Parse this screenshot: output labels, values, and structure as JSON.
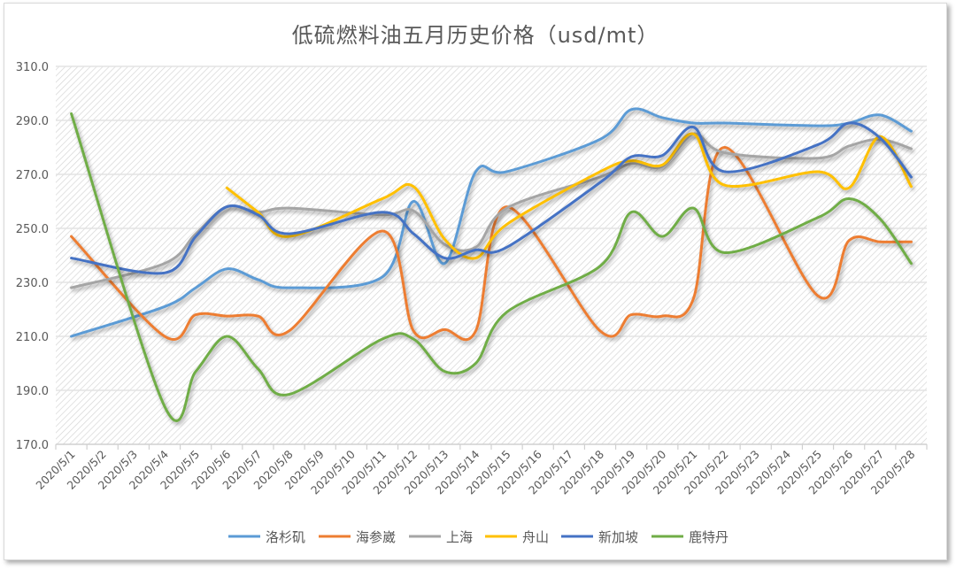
{
  "chart_data": {
    "type": "line",
    "title": "低硫燃料油五月历史价格（usd/mt）",
    "xlabel": "",
    "ylabel": "",
    "ylim": [
      170,
      310
    ],
    "yticks": [
      "170.0",
      "190.0",
      "210.0",
      "230.0",
      "250.0",
      "270.0",
      "290.0",
      "310.0"
    ],
    "grid": true,
    "smooth": true,
    "legend_position": "bottom",
    "categories": [
      "2020/5/1",
      "2020/5/2",
      "2020/5/3",
      "2020/5/4",
      "2020/5/5",
      "2020/5/6",
      "2020/5/7",
      "2020/5/8",
      "2020/5/9",
      "2020/5/10",
      "2020/5/11",
      "2020/5/12",
      "2020/5/13",
      "2020/5/14",
      "2020/5/15",
      "2020/5/16",
      "2020/5/17",
      "2020/5/18",
      "2020/5/19",
      "2020/5/20",
      "2020/5/21",
      "2020/5/22",
      "2020/5/23",
      "2020/5/24",
      "2020/5/25",
      "2020/5/26",
      "2020/5/27",
      "2020/5/28"
    ],
    "x": [
      "2020/5/1",
      "2020/5/4",
      "2020/5/5",
      "2020/5/6",
      "2020/5/7",
      "2020/5/8",
      "2020/5/11",
      "2020/5/12",
      "2020/5/13",
      "2020/5/14",
      "2020/5/15",
      "2020/5/18",
      "2020/5/19",
      "2020/5/20",
      "2020/5/21",
      "2020/5/22",
      "2020/5/25",
      "2020/5/26",
      "2020/5/27",
      "2020/5/28"
    ],
    "series": [
      {
        "name": "洛杉矶",
        "color": "#5B9BD5",
        "values": [
          210,
          221,
          228,
          235,
          231,
          228,
          232,
          260,
          237,
          271,
          271,
          283,
          294,
          291,
          289,
          289,
          288,
          289,
          292,
          286
        ]
      },
      {
        "name": "海参崴",
        "color": "#ED7D31",
        "values": [
          247,
          210,
          218,
          217.5,
          217.5,
          212,
          249,
          212,
          212.5,
          212,
          258,
          212,
          218,
          217.5,
          224,
          280,
          225,
          245.5,
          245,
          245
        ]
      },
      {
        "name": "上海",
        "color": "#A5A5A5",
        "values": [
          228,
          237,
          248,
          258,
          256,
          257.5,
          255,
          256.5,
          244,
          243,
          257.5,
          269,
          274,
          273,
          285,
          278,
          276,
          280.5,
          283,
          279.5
        ]
      },
      {
        "name": "舟山",
        "color": "#FFC000",
        "values": [
          null,
          null,
          null,
          265,
          256,
          247,
          261,
          265.5,
          246,
          239,
          251.5,
          271,
          275,
          273.5,
          285,
          266,
          271,
          265,
          284,
          265.5
        ]
      },
      {
        "name": "新加坡",
        "color": "#4472C4",
        "values": [
          239,
          233.5,
          247,
          258,
          255,
          248,
          256,
          248,
          239,
          242,
          243,
          267,
          276.5,
          277,
          287.5,
          271,
          281,
          289,
          283.5,
          269
        ]
      },
      {
        "name": "鹿特丹",
        "color": "#70AD47",
        "values": [
          292.5,
          184,
          197,
          210,
          198,
          188.5,
          209,
          209,
          197,
          200,
          219,
          236,
          256,
          247,
          257.5,
          241,
          254,
          261,
          253.5,
          237
        ]
      }
    ]
  }
}
